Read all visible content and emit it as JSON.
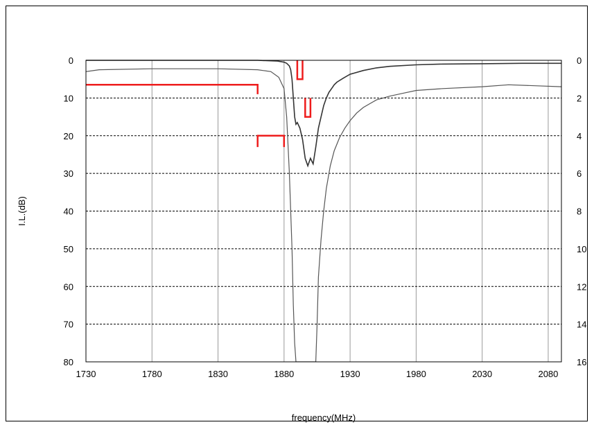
{
  "chart_data": {
    "type": "line",
    "title": "",
    "xlabel": "frequency(MHz)",
    "ylabel": "I.L.(dB)",
    "y2label": "",
    "xlim": [
      1730,
      2090
    ],
    "ylim": [
      0,
      80
    ],
    "y2lim": [
      0,
      16
    ],
    "y_inverted": true,
    "grid": true,
    "x_ticks": [
      1730,
      1780,
      1830,
      1880,
      1930,
      1980,
      2030,
      2080
    ],
    "y_ticks": [
      0,
      10,
      20,
      30,
      40,
      50,
      60,
      70,
      80
    ],
    "y2_ticks": [
      0,
      2,
      4,
      6,
      8,
      10,
      12,
      14,
      16
    ],
    "series": [
      {
        "axis": "left",
        "color": "#333333",
        "x": [
          1730,
          1800,
          1860,
          1875,
          1880,
          1882,
          1884,
          1885,
          1886,
          1887,
          1888,
          1889,
          1890,
          1892,
          1894,
          1896,
          1898,
          1900,
          1902,
          1904,
          1906,
          1908,
          1910,
          1912,
          1914,
          1916,
          1918,
          1920,
          1925,
          1930,
          1940,
          1950,
          1960,
          1980,
          2000,
          2030,
          2060,
          2090
        ],
        "y": [
          0,
          0,
          0,
          0.2,
          0.5,
          0.8,
          1.5,
          2.5,
          5,
          10,
          15,
          17,
          16.5,
          18,
          21,
          26,
          28,
          26,
          27.5,
          23,
          18,
          15,
          12,
          10,
          8.5,
          7.5,
          6.5,
          5.8,
          4.7,
          3.7,
          2.7,
          2,
          1.6,
          1.2,
          1,
          0.9,
          0.8,
          0.8
        ]
      },
      {
        "axis": "right",
        "color": "#555555",
        "x": [
          1730,
          1740,
          1780,
          1830,
          1860,
          1870,
          1876,
          1880,
          1882,
          1884,
          1886,
          1887,
          1888,
          1889,
          1904,
          1905,
          1906,
          1908,
          1910,
          1912,
          1915,
          1918,
          1922,
          1926,
          1930,
          1935,
          1940,
          1945,
          1950,
          1955,
          1960,
          1970,
          1980,
          2000,
          2030,
          2050,
          2070,
          2090
        ],
        "y": [
          0.6,
          0.5,
          0.45,
          0.45,
          0.5,
          0.6,
          0.9,
          1.5,
          3,
          6,
          10,
          13,
          15,
          16,
          16,
          14,
          11.5,
          9.5,
          8,
          6.8,
          5.6,
          4.8,
          4.1,
          3.6,
          3.2,
          2.8,
          2.5,
          2.3,
          2.1,
          2,
          1.9,
          1.75,
          1.6,
          1.5,
          1.4,
          1.3,
          1.35,
          1.4
        ]
      }
    ],
    "spec_marks": [
      {
        "x": [
          1730,
          1730,
          1860,
          1860
        ],
        "y": [
          6.5,
          6.5,
          6.5,
          9
        ]
      },
      {
        "x": [
          1860,
          1860,
          1880,
          1880
        ],
        "y": [
          23,
          20,
          20,
          23
        ]
      },
      {
        "x": [
          1890,
          1890,
          1894,
          1894
        ],
        "y": [
          0,
          5,
          5,
          0
        ]
      },
      {
        "x": [
          1896,
          1896,
          1900,
          1900
        ],
        "y": [
          10,
          15,
          15,
          10
        ]
      }
    ]
  },
  "colors": {
    "spec_mark": "#ee1c1c",
    "grid": "#000000",
    "frame": "#000000"
  }
}
